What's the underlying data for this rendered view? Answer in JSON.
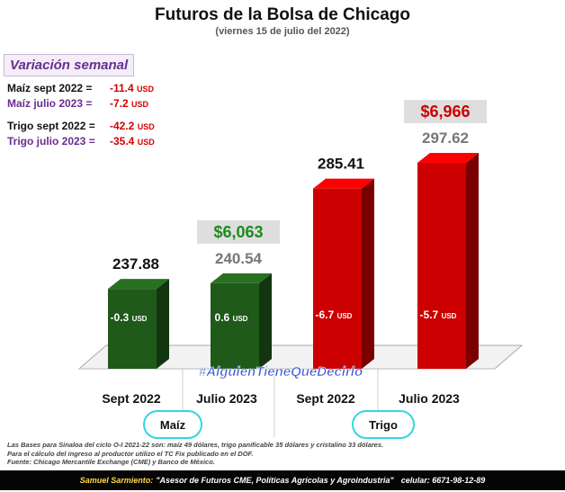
{
  "header": {
    "title": "Futuros de la Bolsa de Chicago",
    "subtitle": "(viernes 15 de julio del 2022)"
  },
  "weekly": {
    "title": "Variación semanal",
    "rows": [
      {
        "label": "Maíz sept 2022  =",
        "value": "-11.4",
        "unit": "USD"
      },
      {
        "label": "Maíz julio 2023 =",
        "value": "-7.2",
        "unit": "USD"
      },
      {
        "label": "Trigo sept 2022 =",
        "value": "-42.2",
        "unit": "USD"
      },
      {
        "label": "Trigo julio 2023 =",
        "value": "-35.4",
        "unit": "USD"
      }
    ]
  },
  "crops": {
    "maiz": "Maíz",
    "trigo": "Trigo"
  },
  "chart_data": {
    "type": "bar",
    "title": "Futuros de la Bolsa de Chicago",
    "subtitle": "(viernes 15 de julio del 2022)",
    "categories": [
      "Sept 2022",
      "Julio 2023",
      "Sept 2022",
      "Julio 2023"
    ],
    "groups": [
      "Maíz",
      "Maíz",
      "Trigo",
      "Trigo"
    ],
    "values": [
      237.88,
      240.54,
      285.41,
      297.62
    ],
    "value_labels": [
      "237.88",
      "240.54",
      "285.41",
      "297.62"
    ],
    "changes": [
      "-0.3",
      "0.6",
      "-6.7",
      "-5.7"
    ],
    "change_unit": "USD",
    "mxn_labels": [
      "",
      "$6,063",
      "",
      "$6,966"
    ],
    "colors": {
      "maiz": "#1f5a1a",
      "trigo": "#cc0000"
    },
    "ylim": [
      200,
      310
    ],
    "watermark": "#AlguienTieneQueDecirlo"
  },
  "notes": [
    "Las Bases para Sinaloa del ciclo O-I 2021-22 son: maíz 49 dólares, trigo panificable 35 dólares y cristalino 33 dólares.",
    "Para el cálculo del ingreso al productor utilizo el TC Fix publicado en el DOF.",
    "Fuente: Chicago Mercantile Exchange (CME) y Banco de México."
  ],
  "footer": {
    "name": "Samuel Sarmiento:",
    "role": "\"Asesor de Futuros CME, Políticas Agrícolas y Agroindustria\"",
    "phone": "celular: 6671-98-12-89"
  }
}
